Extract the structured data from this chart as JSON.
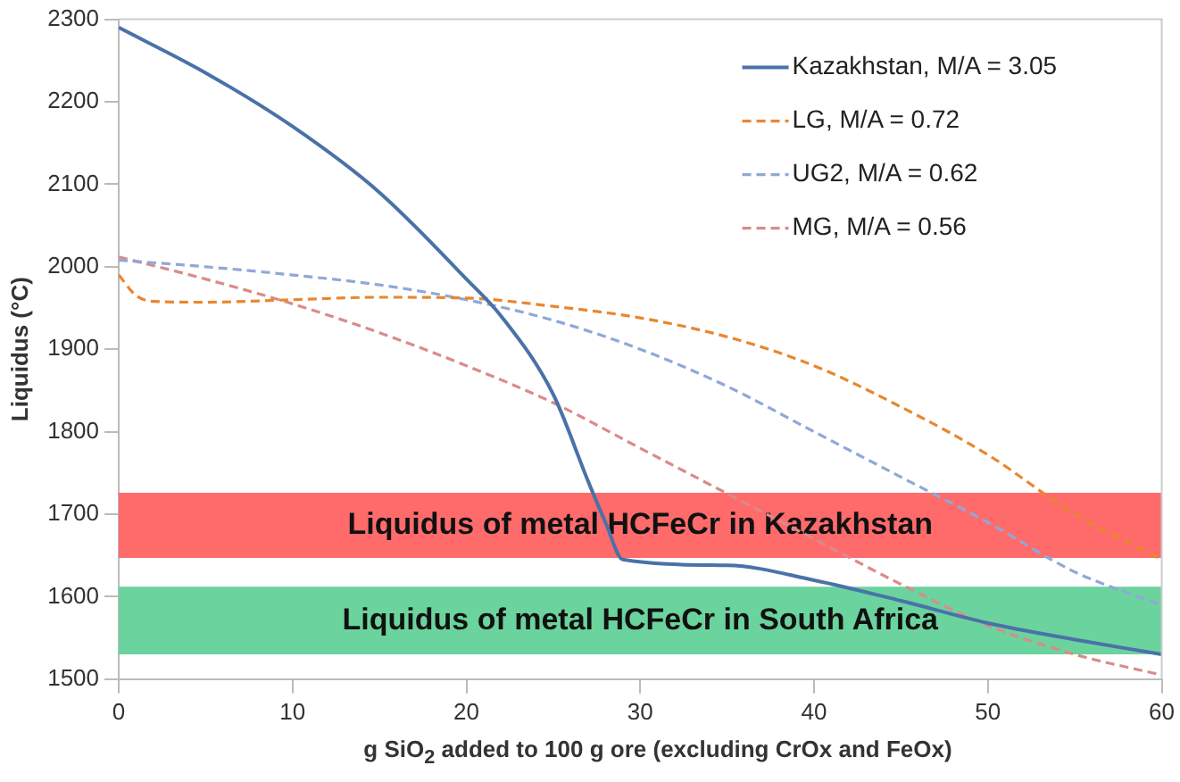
{
  "chart_data": {
    "type": "line",
    "xlabel": "g SiO$_{2}$ added to 100 g ore (excluding CrOx and FeOx)",
    "ylabel": "Liquidus (°C)",
    "xlim": [
      0,
      60
    ],
    "xticks": [
      0,
      10,
      20,
      30,
      40,
      50,
      60
    ],
    "ylim": [
      1500,
      2300
    ],
    "yticks": [
      1500,
      1600,
      1700,
      1800,
      1900,
      2000,
      2100,
      2200,
      2300
    ],
    "grid": false,
    "legend": "top right",
    "marker": "none",
    "series": [
      {
        "name": "Kazakhstan, M/A = 3.05",
        "color": "#4a72a8",
        "line_style": "solid",
        "x": [
          0,
          5,
          10,
          15,
          20,
          22,
          25,
          27,
          28,
          29,
          35,
          40,
          45,
          50,
          55,
          60
        ],
        "values": [
          2290,
          2235,
          2170,
          2090,
          1985,
          1940,
          1845,
          1740,
          1690,
          1645,
          1638,
          1620,
          1595,
          1568,
          1548,
          1530
        ]
      },
      {
        "name": "LG, M/A = 0.72",
        "color": "#e8872f",
        "line_style": "dashed",
        "x": [
          0,
          1,
          2,
          5,
          10,
          15,
          20,
          25,
          30,
          35,
          40,
          45,
          50,
          55,
          60
        ],
        "values": [
          1990,
          1965,
          1958,
          1957,
          1960,
          1963,
          1962,
          1952,
          1938,
          1915,
          1880,
          1830,
          1772,
          1700,
          1645
        ]
      },
      {
        "name": "UG2, M/A = 0.62",
        "color": "#8fa8d8",
        "line_style": "dashed",
        "x": [
          0,
          5,
          10,
          15,
          20,
          25,
          30,
          35,
          40,
          45,
          50,
          55,
          60
        ],
        "values": [
          2008,
          2000,
          1990,
          1978,
          1960,
          1935,
          1900,
          1855,
          1800,
          1745,
          1690,
          1630,
          1590
        ]
      },
      {
        "name": "MG, M/A = 0.56",
        "color": "#d98b8b",
        "line_style": "dashed",
        "x": [
          0,
          5,
          10,
          15,
          20,
          25,
          30,
          35,
          40,
          45,
          50,
          55,
          60
        ],
        "values": [
          2012,
          1985,
          1955,
          1920,
          1880,
          1835,
          1780,
          1725,
          1670,
          1615,
          1565,
          1530,
          1505
        ]
      }
    ],
    "bands": [
      {
        "axis": "y",
        "from": 1647,
        "to": 1726,
        "label": "Liquidus of metal HCFeCr in Kazakhstan",
        "color": "#ff6b6b"
      },
      {
        "axis": "y",
        "from": 1530,
        "to": 1612,
        "label": "Liquidus of metal HCFeCr in South Africa",
        "color": "#6bd39d"
      }
    ]
  }
}
